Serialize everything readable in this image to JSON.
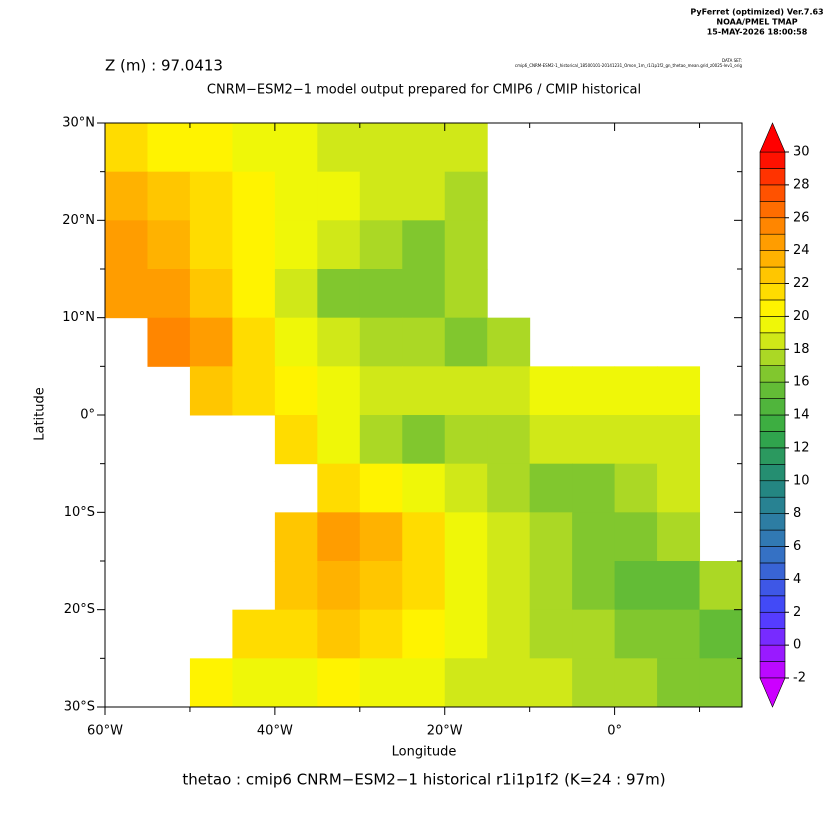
{
  "chart_data": {
    "type": "map",
    "header": [
      "PyFerret (optimized) Ver.7.63",
      "NOAA/PMEL TMAP",
      "15-MAY-2026 18:00:58"
    ],
    "dataset_label": "DATA SET:",
    "dataset": "cmip6_CNRM-ESM2-1_historical_18500101-20141231_Omon_1m_r1i1p1f2_gn_thetao_mean.grid_z0025-lev1_orig",
    "title": "Z (m) : 97.0413",
    "subtitle": "CNRM−ESM2−1 model output prepared for CMIP6 / CMIP historical",
    "footer": "thetao : cmip6 CNRM−ESM2−1 historical r1i1p1f2   (K=24 : 97m)",
    "x_label": "Longitude",
    "y_label": "Latitude",
    "xlim": [
      -60,
      15
    ],
    "ylim": [
      -30,
      30
    ],
    "xticks": [
      {
        "value": -60,
        "label": "60°W"
      },
      {
        "value": -40,
        "label": "40°W"
      },
      {
        "value": -20,
        "label": "20°W"
      },
      {
        "value": 0,
        "label": "0°"
      }
    ],
    "xminor": [
      -50,
      -30,
      -10,
      10
    ],
    "yticks": [
      {
        "value": 30,
        "label": "30°N"
      },
      {
        "value": 20,
        "label": "20°N"
      },
      {
        "value": 10,
        "label": "10°N"
      },
      {
        "value": 0,
        "label": "0°"
      },
      {
        "value": -10,
        "label": "10°S"
      },
      {
        "value": -20,
        "label": "20°S"
      },
      {
        "value": -30,
        "label": "30°S"
      }
    ],
    "yminor": [
      25,
      15,
      5,
      -5,
      -15,
      -25
    ],
    "cell": 5,
    "x": [
      -57.5,
      -52.5,
      -47.5,
      -42.5,
      -37.5,
      -32.5,
      -27.5,
      -22.5,
      -17.5,
      -12.5,
      -7.5,
      -2.5,
      2.5,
      7.5,
      12.5
    ],
    "y": [
      27.5,
      22.5,
      17.5,
      12.5,
      7.5,
      2.5,
      -2.5,
      -7.5,
      -12.5,
      -17.5,
      -22.5,
      -27.5
    ],
    "values": [
      [
        21,
        20,
        20,
        19,
        19,
        18,
        18,
        18,
        18,
        null,
        null,
        null,
        null,
        null,
        null
      ],
      [
        23,
        22,
        21,
        20,
        19,
        19,
        18,
        18,
        17,
        null,
        null,
        null,
        null,
        null,
        null
      ],
      [
        24,
        23,
        21,
        20,
        19,
        18,
        17,
        16,
        17,
        null,
        null,
        null,
        null,
        null,
        null
      ],
      [
        24,
        24,
        22,
        20,
        18,
        16,
        16,
        16,
        17,
        null,
        null,
        null,
        null,
        null,
        null
      ],
      [
        null,
        25,
        24,
        21,
        19,
        18,
        17,
        17,
        16,
        17,
        null,
        null,
        null,
        null,
        null
      ],
      [
        null,
        null,
        22,
        21,
        20,
        19,
        18,
        18,
        18,
        18,
        19,
        19,
        19,
        19,
        null
      ],
      [
        null,
        null,
        null,
        null,
        21,
        19,
        17,
        16,
        17,
        17,
        18,
        18,
        18,
        18,
        null
      ],
      [
        null,
        null,
        null,
        null,
        null,
        21,
        20,
        19,
        18,
        17,
        16,
        16,
        17,
        18,
        null
      ],
      [
        null,
        null,
        null,
        null,
        22,
        24,
        23,
        21,
        19,
        18,
        17,
        16,
        16,
        17,
        null
      ],
      [
        null,
        null,
        null,
        null,
        22,
        23,
        22,
        21,
        19,
        18,
        17,
        16,
        15,
        15,
        17
      ],
      [
        null,
        null,
        null,
        21,
        21,
        22,
        21,
        20,
        19,
        18,
        17,
        17,
        16,
        16,
        15
      ],
      [
        null,
        null,
        20,
        19,
        19,
        20,
        19,
        19,
        18,
        18,
        18,
        17,
        17,
        16,
        16
      ]
    ],
    "colorbar_lim": [
      -2,
      30
    ],
    "colorbar_ticks": [
      30,
      28,
      26,
      24,
      22,
      20,
      18,
      16,
      14,
      12,
      10,
      8,
      6,
      4,
      2,
      0,
      -2
    ],
    "palette": [
      {
        "value": -2,
        "color": "#cc00ff"
      },
      {
        "value": 2,
        "color": "#4444ff"
      },
      {
        "value": 6,
        "color": "#3377bb"
      },
      {
        "value": 10,
        "color": "#22887a"
      },
      {
        "value": 13,
        "color": "#33aa44"
      },
      {
        "value": 16,
        "color": "#6cbf33"
      },
      {
        "value": 18,
        "color": "#c0e020"
      },
      {
        "value": 20,
        "color": "#ffff00"
      },
      {
        "value": 22,
        "color": "#ffd000"
      },
      {
        "value": 24,
        "color": "#ffa800"
      },
      {
        "value": 26,
        "color": "#ff7a00"
      },
      {
        "value": 28,
        "color": "#ff4400"
      },
      {
        "value": 30,
        "color": "#ff0000"
      }
    ]
  }
}
